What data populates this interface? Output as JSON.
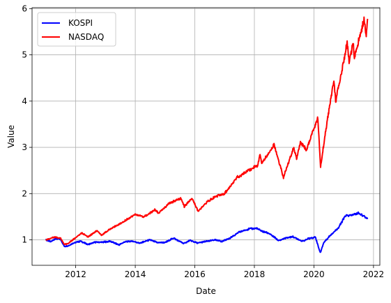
{
  "chart_data": {
    "type": "line",
    "title": "",
    "xlabel": "Date",
    "ylabel": "Value",
    "xlim": [
      "2010-07-15",
      "2022-03-20"
    ],
    "ylim": [
      0.45,
      6.02
    ],
    "xticks": [
      "2012-01-01",
      "2014-01-01",
      "2016-01-01",
      "2018-01-01",
      "2020-01-01",
      "2022-01-01"
    ],
    "xtick_labels": [
      "2012",
      "2014",
      "2016",
      "2018",
      "2020",
      "2022"
    ],
    "yticks": [
      1,
      2,
      3,
      4,
      5,
      6
    ],
    "ytick_labels": [
      "1",
      "2",
      "3",
      "4",
      "5",
      "6"
    ],
    "grid": true,
    "legend_position": "upper-left",
    "series": [
      {
        "name": "KOSPI",
        "color": "#0000ff",
        "points": [
          [
            "2011-01-01",
            1.0
          ],
          [
            "2011-03-01",
            0.96
          ],
          [
            "2011-05-01",
            1.03
          ],
          [
            "2011-07-01",
            1.01
          ],
          [
            "2011-08-15",
            0.86
          ],
          [
            "2011-10-01",
            0.87
          ],
          [
            "2011-12-01",
            0.93
          ],
          [
            "2012-03-01",
            0.97
          ],
          [
            "2012-06-01",
            0.9
          ],
          [
            "2012-09-01",
            0.95
          ],
          [
            "2012-12-01",
            0.95
          ],
          [
            "2013-03-01",
            0.97
          ],
          [
            "2013-06-15",
            0.89
          ],
          [
            "2013-09-01",
            0.96
          ],
          [
            "2013-12-01",
            0.97
          ],
          [
            "2014-03-01",
            0.93
          ],
          [
            "2014-07-01",
            1.0
          ],
          [
            "2014-10-01",
            0.94
          ],
          [
            "2015-01-01",
            0.94
          ],
          [
            "2015-04-15",
            1.04
          ],
          [
            "2015-08-20",
            0.92
          ],
          [
            "2015-11-01",
            0.99
          ],
          [
            "2016-02-01",
            0.93
          ],
          [
            "2016-06-01",
            0.97
          ],
          [
            "2016-09-01",
            1.0
          ],
          [
            "2016-12-01",
            0.97
          ],
          [
            "2017-03-01",
            1.03
          ],
          [
            "2017-07-01",
            1.17
          ],
          [
            "2017-11-01",
            1.24
          ],
          [
            "2018-01-29",
            1.25
          ],
          [
            "2018-04-01",
            1.19
          ],
          [
            "2018-07-01",
            1.14
          ],
          [
            "2018-10-29",
            0.98
          ],
          [
            "2019-01-01",
            1.03
          ],
          [
            "2019-04-15",
            1.07
          ],
          [
            "2019-08-15",
            0.97
          ],
          [
            "2019-11-01",
            1.03
          ],
          [
            "2020-01-20",
            1.06
          ],
          [
            "2020-03-19",
            0.72
          ],
          [
            "2020-05-01",
            0.94
          ],
          [
            "2020-08-01",
            1.12
          ],
          [
            "2020-11-01",
            1.27
          ],
          [
            "2021-01-20",
            1.52
          ],
          [
            "2021-04-01",
            1.53
          ],
          [
            "2021-07-01",
            1.58
          ],
          [
            "2021-09-01",
            1.52
          ],
          [
            "2021-10-20",
            1.45
          ]
        ]
      },
      {
        "name": "NASDAQ",
        "color": "#ff0000",
        "points": [
          [
            "2011-01-01",
            1.0
          ],
          [
            "2011-04-15",
            1.06
          ],
          [
            "2011-07-01",
            1.03
          ],
          [
            "2011-08-15",
            0.9
          ],
          [
            "2011-10-01",
            0.92
          ],
          [
            "2012-03-15",
            1.15
          ],
          [
            "2012-06-01",
            1.06
          ],
          [
            "2012-09-15",
            1.2
          ],
          [
            "2012-11-15",
            1.1
          ],
          [
            "2013-03-01",
            1.24
          ],
          [
            "2013-07-01",
            1.35
          ],
          [
            "2013-12-31",
            1.55
          ],
          [
            "2014-04-15",
            1.5
          ],
          [
            "2014-09-01",
            1.65
          ],
          [
            "2014-10-15",
            1.58
          ],
          [
            "2015-03-01",
            1.8
          ],
          [
            "2015-07-15",
            1.9
          ],
          [
            "2015-08-25",
            1.72
          ],
          [
            "2015-12-01",
            1.9
          ],
          [
            "2016-02-10",
            1.62
          ],
          [
            "2016-06-01",
            1.82
          ],
          [
            "2016-09-01",
            1.93
          ],
          [
            "2016-12-31",
            2.0
          ],
          [
            "2017-06-01",
            2.35
          ],
          [
            "2017-12-31",
            2.58
          ],
          [
            "2018-02-08",
            2.6
          ],
          [
            "2018-03-12",
            2.85
          ],
          [
            "2018-04-01",
            2.65
          ],
          [
            "2018-08-30",
            3.05
          ],
          [
            "2018-12-24",
            2.35
          ],
          [
            "2019-04-30",
            3.0
          ],
          [
            "2019-06-03",
            2.75
          ],
          [
            "2019-07-20",
            3.1
          ],
          [
            "2019-10-01",
            2.95
          ],
          [
            "2020-02-19",
            3.65
          ],
          [
            "2020-03-23",
            2.58
          ],
          [
            "2020-06-10",
            3.55
          ],
          [
            "2020-09-02",
            4.45
          ],
          [
            "2020-09-24",
            4.0
          ],
          [
            "2021-02-12",
            5.25
          ],
          [
            "2021-03-08",
            4.85
          ],
          [
            "2021-04-26",
            5.25
          ],
          [
            "2021-05-12",
            4.95
          ],
          [
            "2021-09-07",
            5.75
          ],
          [
            "2021-10-04",
            5.4
          ],
          [
            "2021-10-20",
            5.78
          ]
        ]
      }
    ]
  }
}
